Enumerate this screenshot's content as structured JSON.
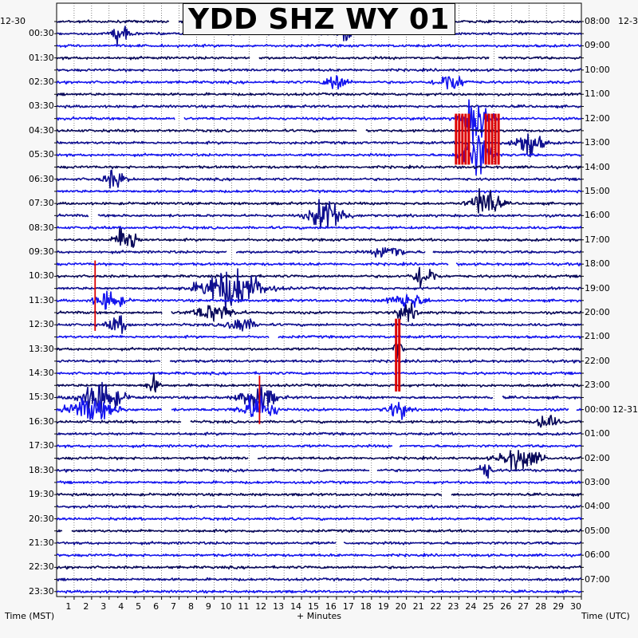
{
  "chart_data": {
    "type": "helicorder",
    "title": "YDD SHZ WY 01",
    "xlabel": "+ Minutes",
    "left_axis_label": "Time (MST)",
    "right_axis_label": "Time (UTC)",
    "left_date": "12-30",
    "right_date_top": "12-3",
    "right_date_change": "12-31",
    "x_ticks": [
      "1",
      "2",
      "3",
      "4",
      "5",
      "6",
      "7",
      "8",
      "9",
      "10",
      "11",
      "12",
      "13",
      "14",
      "15",
      "16",
      "17",
      "18",
      "19",
      "20",
      "21",
      "22",
      "23",
      "24",
      "25",
      "26",
      "27",
      "28",
      "29",
      "30"
    ],
    "xlim": [
      0,
      30
    ],
    "left_times": [
      "00:30",
      "01:30",
      "02:30",
      "03:30",
      "04:30",
      "05:30",
      "06:30",
      "07:30",
      "08:30",
      "09:30",
      "10:30",
      "11:30",
      "12:30",
      "13:30",
      "14:30",
      "15:30",
      "16:30",
      "17:30",
      "18:30",
      "19:30",
      "20:30",
      "21:30",
      "22:30",
      "23:30"
    ],
    "right_times": [
      "08:00",
      "09:00",
      "10:00",
      "11:00",
      "12:00",
      "13:00",
      "14:00",
      "15:00",
      "16:00",
      "17:00",
      "18:00",
      "19:00",
      "20:00",
      "21:00",
      "22:00",
      "23:00",
      "00:00",
      "01:00",
      "02:00",
      "03:00",
      "04:00",
      "05:00",
      "06:00",
      "07:00"
    ],
    "trace_colors": [
      "#0a0a5a",
      "#101090",
      "#1515ee"
    ],
    "clip_color": "#dd0000",
    "num_traces": 48,
    "grid": true,
    "events": [
      {
        "minute": 3.7,
        "trace": 1,
        "amp": 1.6,
        "width": 1.2
      },
      {
        "minute": 16.5,
        "trace": 1,
        "amp": 1.5,
        "width": 0.8
      },
      {
        "minute": 16,
        "trace": 5,
        "amp": 1.5,
        "width": 1.5
      },
      {
        "minute": 22.5,
        "trace": 5,
        "amp": 1.4,
        "width": 2
      },
      {
        "minute": 24,
        "trace": 8,
        "amp": 3.5,
        "width": 2
      },
      {
        "minute": 27,
        "trace": 10,
        "amp": 2,
        "width": 2
      },
      {
        "minute": 24,
        "trace": 11,
        "amp": 3.5,
        "width": 2
      },
      {
        "minute": 3.3,
        "trace": 13,
        "amp": 1.4,
        "width": 1.5
      },
      {
        "minute": 24.5,
        "trace": 15,
        "amp": 2.5,
        "width": 2
      },
      {
        "minute": 15.5,
        "trace": 16,
        "amp": 2.6,
        "width": 2.5
      },
      {
        "minute": 4,
        "trace": 18,
        "amp": 2.5,
        "width": 1.5
      },
      {
        "minute": 19,
        "trace": 19,
        "amp": 1.2,
        "width": 2
      },
      {
        "minute": 21,
        "trace": 21,
        "amp": 2,
        "width": 1.5
      },
      {
        "minute": 10,
        "trace": 22,
        "amp": 3,
        "width": 4.5
      },
      {
        "minute": 3,
        "trace": 23,
        "amp": 1.5,
        "width": 2
      },
      {
        "minute": 20,
        "trace": 23,
        "amp": 1.3,
        "width": 2.5
      },
      {
        "minute": 9,
        "trace": 24,
        "amp": 1.2,
        "width": 3
      },
      {
        "minute": 20,
        "trace": 24,
        "amp": 1.2,
        "width": 1.5
      },
      {
        "minute": 3.5,
        "trace": 25,
        "amp": 1.2,
        "width": 1.5
      },
      {
        "minute": 10.5,
        "trace": 25,
        "amp": 1.2,
        "width": 2
      },
      {
        "minute": 19.5,
        "trace": 27,
        "amp": 2.5,
        "width": 0.6
      },
      {
        "minute": 5.5,
        "trace": 30,
        "amp": 1.5,
        "width": 0.8
      },
      {
        "minute": 2.5,
        "trace": 31,
        "amp": 2.5,
        "width": 3
      },
      {
        "minute": 11.5,
        "trace": 31,
        "amp": 2,
        "width": 2.5
      },
      {
        "minute": 2,
        "trace": 32,
        "amp": 1.6,
        "width": 3.5
      },
      {
        "minute": 11.5,
        "trace": 32,
        "amp": 2,
        "width": 2.5
      },
      {
        "minute": 19.5,
        "trace": 32,
        "amp": 1.3,
        "width": 1.5
      },
      {
        "minute": 28,
        "trace": 33,
        "amp": 1.2,
        "width": 1.5
      },
      {
        "minute": 26.5,
        "trace": 36,
        "amp": 1.6,
        "width": 3
      },
      {
        "minute": 24.5,
        "trace": 37,
        "amp": 1.3,
        "width": 1
      }
    ],
    "clips": [
      {
        "minute": 23.2,
        "trace_start": 7.6,
        "trace_end": 11.8,
        "bars": 5
      },
      {
        "minute": 24.9,
        "trace_start": 7.6,
        "trace_end": 11.8,
        "bars": 5
      },
      {
        "minute": 2.2,
        "trace_start": 19.7,
        "trace_end": 25.5,
        "bars": 1
      },
      {
        "minute": 19.5,
        "trace_start": 24.5,
        "trace_end": 30.5,
        "bars": 2
      },
      {
        "minute": 11.6,
        "trace_start": 29.2,
        "trace_end": 33.2,
        "bars": 1
      }
    ],
    "gaps": [
      {
        "minute": 6.7,
        "trace": 0,
        "width": 0.5
      },
      {
        "minute": 11.3,
        "trace": 3,
        "width": 0.5
      },
      {
        "minute": 25,
        "trace": 3,
        "width": 0.5
      },
      {
        "minute": 7,
        "trace": 8,
        "width": 0.5
      },
      {
        "minute": 17.4,
        "trace": 9,
        "width": 0.5
      },
      {
        "minute": 2.1,
        "trace": 16,
        "width": 0.5
      },
      {
        "minute": 10,
        "trace": 19,
        "width": 0.5
      },
      {
        "minute": 21.3,
        "trace": 19,
        "width": 0.4
      },
      {
        "minute": 22.6,
        "trace": 20,
        "width": 0.4
      },
      {
        "minute": 6.3,
        "trace": 24,
        "width": 0.5
      },
      {
        "minute": 12.4,
        "trace": 26,
        "width": 0.5
      },
      {
        "minute": 6.2,
        "trace": 28,
        "width": 0.5
      },
      {
        "minute": 25.2,
        "trace": 31,
        "width": 0.5
      },
      {
        "minute": 6.3,
        "trace": 32,
        "width": 0.5
      },
      {
        "minute": 29.5,
        "trace": 32,
        "width": 0.4
      },
      {
        "minute": 7.4,
        "trace": 33,
        "width": 0.5
      },
      {
        "minute": 19.4,
        "trace": 35,
        "width": 0.4
      },
      {
        "minute": 11.2,
        "trace": 36,
        "width": 0.5
      },
      {
        "minute": 18.1,
        "trace": 37,
        "width": 0.4
      },
      {
        "minute": 22.3,
        "trace": 39,
        "width": 0.5
      },
      {
        "minute": 0.6,
        "trace": 42,
        "width": 0.5
      },
      {
        "minute": 16.2,
        "trace": 43,
        "width": 0.4
      }
    ]
  }
}
